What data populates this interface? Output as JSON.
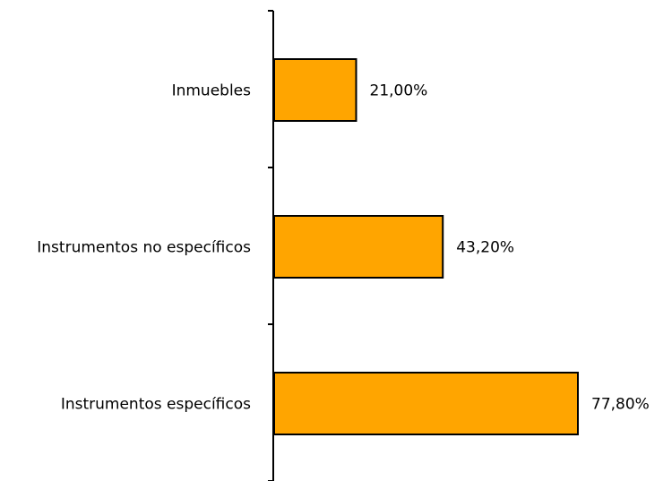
{
  "chart_data": {
    "type": "bar",
    "orientation": "horizontal",
    "categories": [
      "Inmuebles",
      "Instrumentos no específicos",
      "Instrumentos específicos"
    ],
    "values": [
      21.0,
      43.2,
      77.8
    ],
    "value_labels": [
      "21,00%",
      "43,20%",
      "77,80%"
    ],
    "xlim": [
      0,
      100
    ],
    "grid": false,
    "legend": "none",
    "title": "",
    "xlabel": "",
    "ylabel": ""
  },
  "colors": {
    "bar_fill": "#FFA500",
    "bar_stroke": "#000000",
    "axis": "#000000",
    "text": "#000000"
  }
}
